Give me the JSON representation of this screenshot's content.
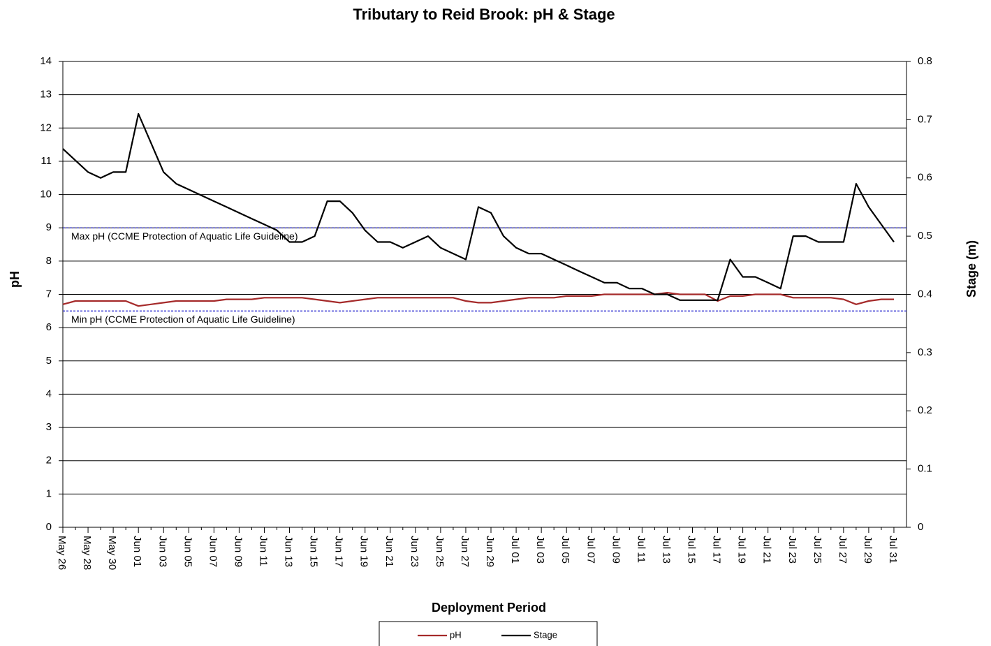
{
  "chart_data": {
    "type": "line",
    "title": "Tributary to Reid Brook: pH & Stage",
    "x_label": "Deployment Period",
    "y_label": "pH",
    "y2_label": "Stage (m)",
    "categories": [
      "May 26",
      null,
      "May 28",
      null,
      "May 30",
      null,
      "Jun 01",
      null,
      "Jun 03",
      null,
      "Jun 05",
      null,
      "Jun 07",
      null,
      "Jun 09",
      null,
      "Jun 11",
      null,
      "Jun 13",
      null,
      "Jun 15",
      null,
      "Jun 17",
      null,
      "Jun 19",
      null,
      "Jun 21",
      null,
      "Jun 23",
      null,
      "Jun 25",
      null,
      "Jun 27",
      null,
      "Jun 29",
      null,
      "Jul 01",
      null,
      "Jul 03",
      null,
      "Jul 05",
      null,
      "Jul 07",
      null,
      "Jul 09",
      null,
      "Jul 11",
      null,
      "Jul 13",
      null,
      "Jul 15",
      null,
      "Jul 17",
      null,
      "Jul 19",
      null,
      "Jul 21",
      null,
      "Jul 23",
      null,
      "Jul 25",
      null,
      "Jul 27",
      null,
      "Jul 29",
      null,
      "Jul 31"
    ],
    "series": [
      {
        "name": "pH",
        "color": "#a52a2a",
        "axis": "y",
        "values": [
          6.7,
          6.8,
          6.8,
          6.8,
          6.8,
          6.8,
          6.65,
          6.7,
          6.75,
          6.8,
          6.8,
          6.8,
          6.8,
          6.85,
          6.85,
          6.85,
          6.9,
          6.9,
          6.9,
          6.9,
          6.85,
          6.8,
          6.75,
          6.8,
          6.85,
          6.9,
          6.9,
          6.9,
          6.9,
          6.9,
          6.9,
          6.9,
          6.8,
          6.75,
          6.75,
          6.8,
          6.85,
          6.9,
          6.9,
          6.9,
          6.95,
          6.95,
          6.95,
          7.0,
          7.0,
          7.0,
          7.0,
          7.0,
          7.05,
          7.0,
          7.0,
          7.0,
          6.8,
          6.95,
          6.95,
          7.0,
          7.0,
          7.0,
          6.9,
          6.9,
          6.9,
          6.9,
          6.85,
          6.7,
          6.8,
          6.85,
          6.85
        ]
      },
      {
        "name": "Stage",
        "color": "#000000",
        "axis": "y2",
        "values": [
          0.65,
          0.63,
          0.61,
          0.6,
          0.61,
          0.61,
          0.71,
          0.66,
          0.61,
          0.59,
          0.58,
          0.57,
          0.56,
          0.55,
          0.54,
          0.53,
          0.52,
          0.51,
          0.49,
          0.49,
          0.5,
          0.56,
          0.56,
          0.54,
          0.51,
          0.49,
          0.49,
          0.48,
          0.49,
          0.5,
          0.48,
          0.47,
          0.46,
          0.55,
          0.54,
          0.5,
          0.48,
          0.47,
          0.47,
          0.46,
          0.45,
          0.44,
          0.43,
          0.42,
          0.42,
          0.41,
          0.41,
          0.4,
          0.4,
          0.39,
          0.39,
          0.39,
          0.39,
          0.46,
          0.43,
          0.43,
          0.42,
          0.41,
          0.5,
          0.5,
          0.49,
          0.49,
          0.49,
          0.59,
          0.55,
          0.52,
          0.49
        ]
      }
    ],
    "reference_lines": [
      {
        "value": 9,
        "label": "Max pH  (CCME  Protection of Aquatic Life Guideline)",
        "color": "#2b2bd0"
      },
      {
        "value": 6.5,
        "label": "Min pH  (CCME  Protection of Aquatic Life Guideline)",
        "color": "#2b2bd0"
      }
    ],
    "ylim": [
      0,
      14
    ],
    "yticks": [
      0,
      1,
      2,
      3,
      4,
      5,
      6,
      7,
      8,
      9,
      10,
      11,
      12,
      13,
      14
    ],
    "y2lim": [
      0,
      0.8
    ],
    "y2ticks": [
      0,
      0.1,
      0.2,
      0.3,
      0.4,
      0.5,
      0.6,
      0.7,
      0.8
    ],
    "grid": true,
    "legend": "bottom"
  }
}
